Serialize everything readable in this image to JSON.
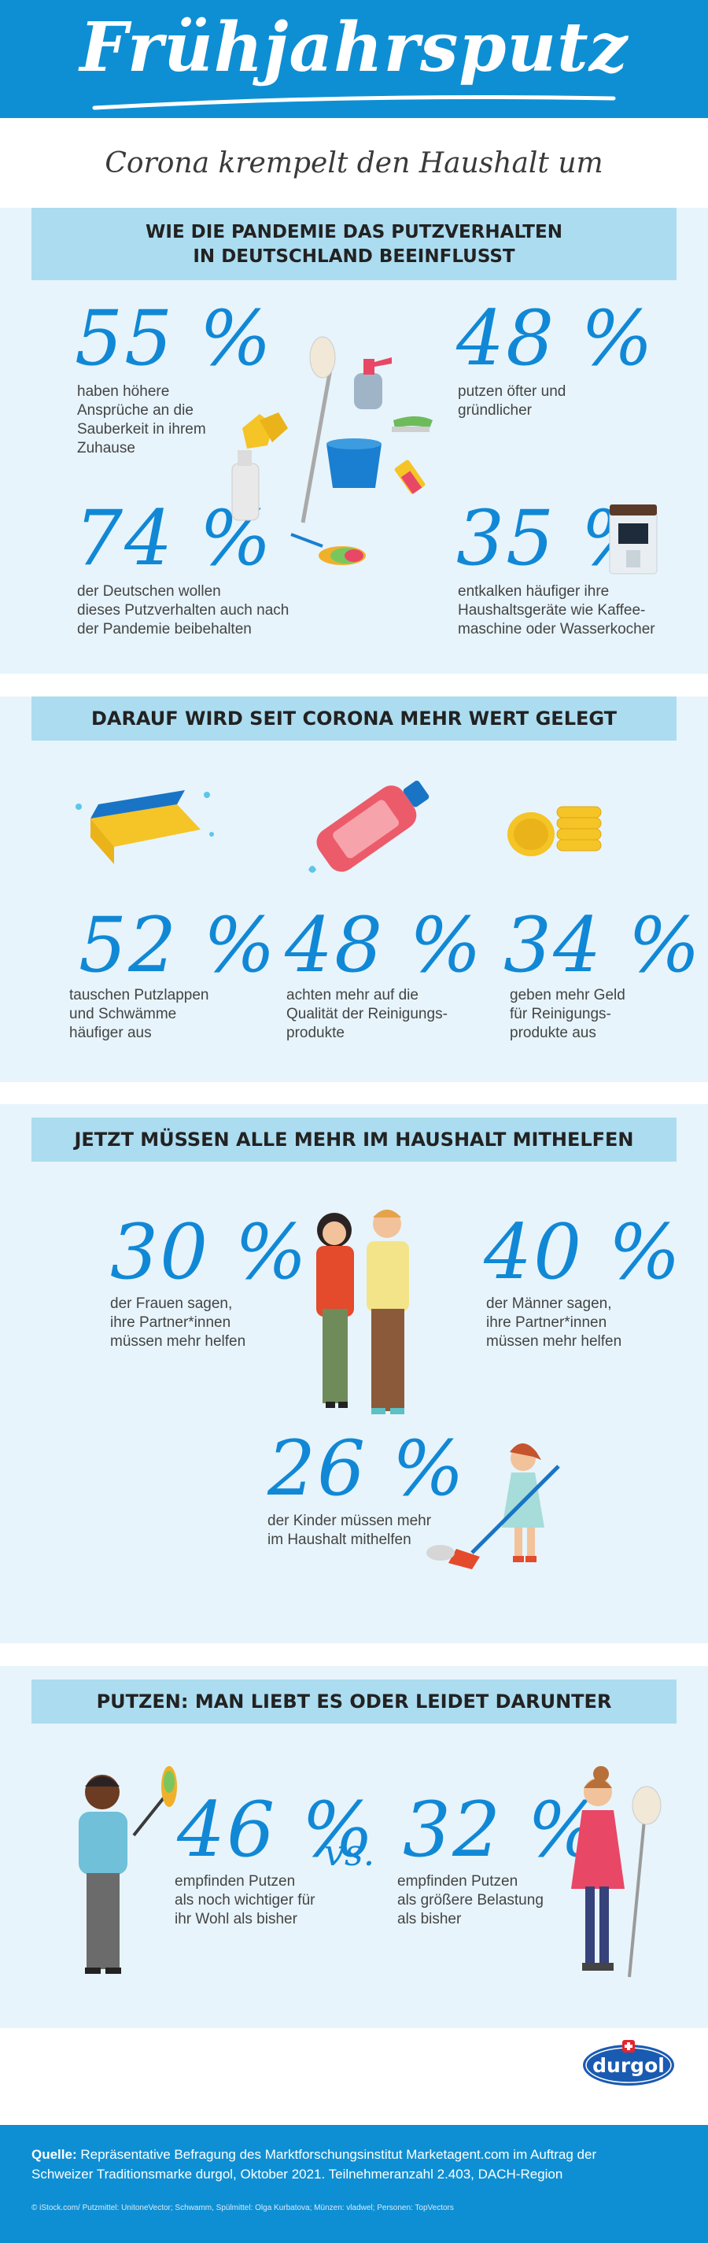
{
  "header": {
    "title": "Frühjahrsputz",
    "subtitle": "Corona krempelt den Haushalt um"
  },
  "section1": {
    "heading_line1": "WIE DIE PANDEMIE DAS PUTZVERHALTEN",
    "heading_line2": "IN DEUTSCHLAND BEEINFLUSST",
    "stats": [
      {
        "value": "55 %",
        "lines": [
          "haben höhere",
          "Ansprüche an die",
          "Sauberkeit in ihrem",
          "Zuhause"
        ]
      },
      {
        "value": "48 %",
        "lines": [
          "putzen öfter und",
          "gründlicher"
        ]
      },
      {
        "value": "74 %",
        "lines": [
          "der Deutschen wollen",
          "dieses Putzverhalten auch nach",
          "der Pandemie beibehalten"
        ]
      },
      {
        "value": "35 %",
        "lines": [
          "entkalken häufiger ihre",
          "Haushaltsgeräte wie Kaffee-",
          "maschine oder Wasserkocher"
        ]
      }
    ]
  },
  "section2": {
    "heading": "DARAUF WIRD SEIT CORONA MEHR WERT GELEGT",
    "stats": [
      {
        "value": "52 %",
        "lines": [
          "tauschen Putzlappen",
          "und Schwämme",
          "häufiger aus"
        ]
      },
      {
        "value": "48 %",
        "lines": [
          "achten mehr auf die",
          "Qualität der Reinigungs-",
          "produkte"
        ]
      },
      {
        "value": "34 %",
        "lines": [
          "geben mehr Geld",
          "für Reinigungs-",
          "produkte aus"
        ]
      }
    ]
  },
  "section3": {
    "heading": "JETZT MÜSSEN ALLE MEHR IM HAUSHALT MITHELFEN",
    "stats": [
      {
        "value": "30 %",
        "lines": [
          "der Frauen sagen,",
          "ihre Partner*innen",
          "müssen mehr helfen"
        ]
      },
      {
        "value": "40 %",
        "lines": [
          "der Männer sagen,",
          "ihre Partner*innen",
          "müssen mehr helfen"
        ]
      },
      {
        "value": "26 %",
        "lines": [
          "der Kinder müssen mehr",
          "im Haushalt mithelfen"
        ]
      }
    ]
  },
  "section4": {
    "heading": "PUTZEN: MAN LIEBT ES ODER LEIDET DARUNTER",
    "vs": "vs.",
    "stats": [
      {
        "value": "46 %",
        "lines": [
          "empfinden Putzen",
          "als noch wichtiger für",
          "ihr Wohl als bisher"
        ]
      },
      {
        "value": "32 %",
        "lines": [
          "empfinden Putzen",
          "als größere Belastung",
          "als bisher"
        ]
      }
    ]
  },
  "logo": {
    "text": "durgol"
  },
  "footer": {
    "source_label": "Quelle:",
    "source_line1": "Repräsentative Befragung des Marktforschungsinstitut Marketagent.com im Auftrag der",
    "source_line2": "Schweizer Traditionsmarke durgol, Oktober 2021. Teilnehmeranzahl 2.403, DACH-Region",
    "credits": "© iStock.com/ Putzmittel: UnitoneVector; Schwamm, Spülmittel: Olga Kurbatova; Münzen: vladwel; Personen: TopVectors"
  },
  "colors": {
    "brand_blue": "#0f8fd3",
    "stat_blue": "#1188d6",
    "section_bg": "#e7f4fb",
    "banner_bg": "#acdcf0"
  }
}
